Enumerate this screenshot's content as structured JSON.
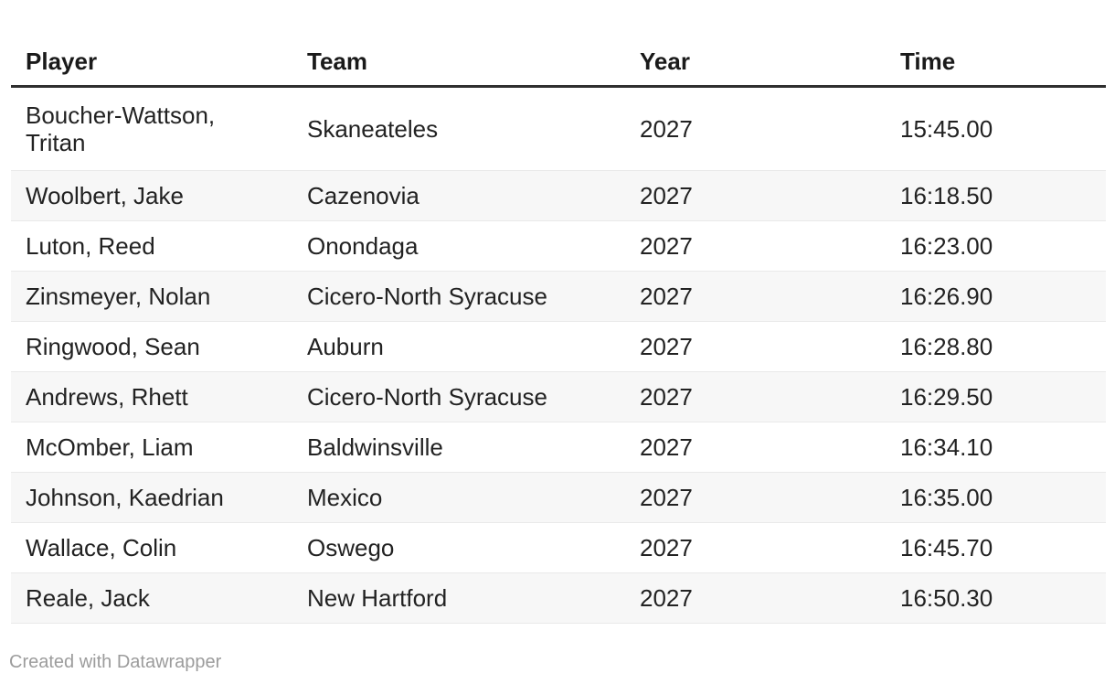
{
  "chart_data": {
    "type": "table",
    "columns": [
      "Player",
      "Team",
      "Year",
      "Time"
    ],
    "rows": [
      [
        "Boucher-Wattson, Tritan",
        "Skaneateles",
        "2027",
        "15:45.00"
      ],
      [
        "Woolbert, Jake",
        "Cazenovia",
        "2027",
        "16:18.50"
      ],
      [
        "Luton, Reed",
        "Onondaga",
        "2027",
        "16:23.00"
      ],
      [
        "Zinsmeyer, Nolan",
        "Cicero-North Syracuse",
        "2027",
        "16:26.90"
      ],
      [
        "Ringwood, Sean",
        "Auburn",
        "2027",
        "16:28.80"
      ],
      [
        "Andrews, Rhett",
        "Cicero-North Syracuse",
        "2027",
        "16:29.50"
      ],
      [
        "McOmber, Liam",
        "Baldwinsville",
        "2027",
        "16:34.10"
      ],
      [
        "Johnson, Kaedrian",
        "Mexico",
        "2027",
        "16:35.00"
      ],
      [
        "Wallace, Colin",
        "Oswego",
        "2027",
        "16:45.70"
      ],
      [
        "Reale, Jack",
        "New Hartford",
        "2027",
        "16:50.30"
      ]
    ],
    "layout_hints": {
      "zebra_striping": true,
      "header_divider": true,
      "column_alignment": [
        "left",
        "left",
        "left",
        "left"
      ]
    }
  },
  "footer": {
    "attribution": "Created with Datawrapper"
  },
  "colors": {
    "background": "#ffffff",
    "text": "#222222",
    "header_text": "#1a1a1a",
    "header_border": "#2f2f2f",
    "row_stripe": "#f7f7f7",
    "row_border": "#e9e9e9",
    "attribution_text": "#9c9c9c"
  }
}
